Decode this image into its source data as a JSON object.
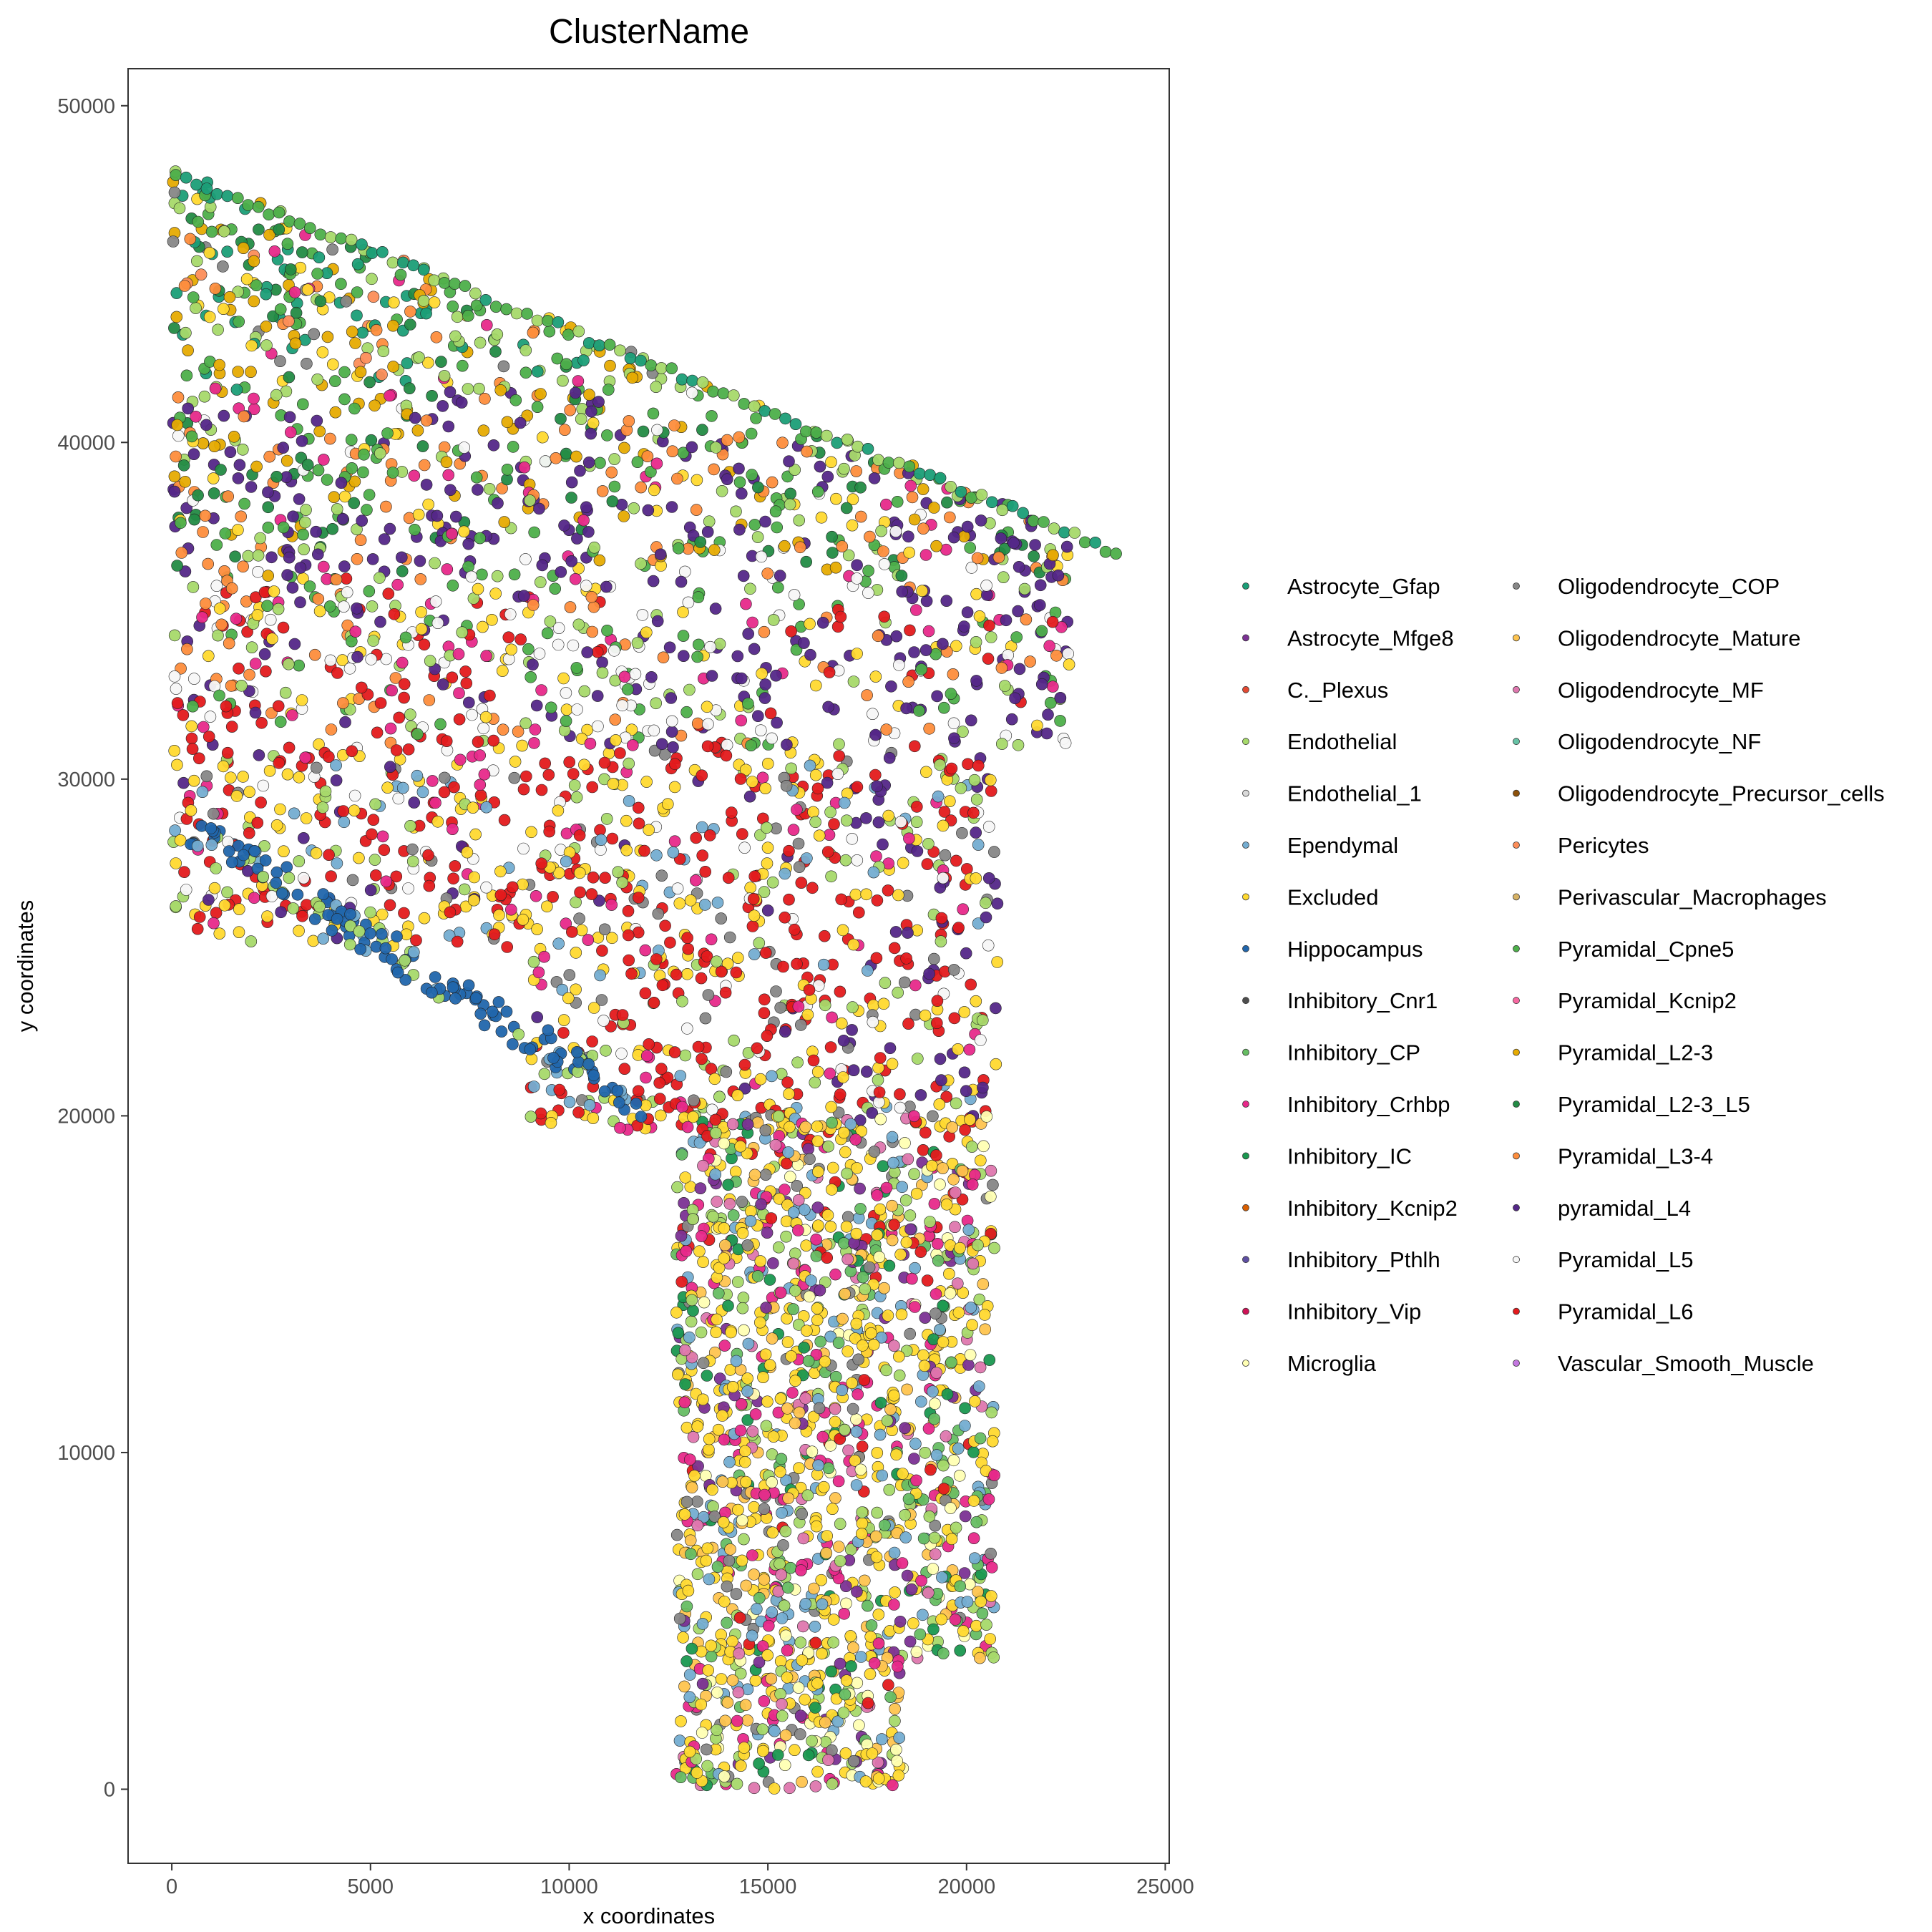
{
  "chart_data": {
    "type": "scatter",
    "title": "ClusterName",
    "xlabel": "x coordinates",
    "ylabel": "y coordinates",
    "xlim": [
      -1100,
      25100
    ],
    "ylim": [
      -2200,
      51100
    ],
    "xticks": [
      0,
      5000,
      10000,
      15000,
      20000,
      25000
    ],
    "yticks": [
      0,
      10000,
      20000,
      30000,
      40000,
      50000
    ],
    "grid": false,
    "legend_position": "right",
    "series": [
      {
        "name": "Astrocyte_Gfap",
        "color": "#1b9e77"
      },
      {
        "name": "Astrocyte_Mfge8",
        "color": "#7b3294"
      },
      {
        "name": "C._Plexus",
        "color": "#e34a33"
      },
      {
        "name": "Endothelial",
        "color": "#a6d96a"
      },
      {
        "name": "Endothelial_1",
        "color": "#d9d9d9"
      },
      {
        "name": "Ependymal",
        "color": "#74add1"
      },
      {
        "name": "Excluded",
        "color": "#ffd92f"
      },
      {
        "name": "Hippocampus",
        "color": "#2166ac"
      },
      {
        "name": "Inhibitory_Cnr1",
        "color": "#4d4d4d"
      },
      {
        "name": "Inhibitory_CP",
        "color": "#66bd63"
      },
      {
        "name": "Inhibitory_Crhbp",
        "color": "#e7298a"
      },
      {
        "name": "Inhibitory_IC",
        "color": "#1a9850"
      },
      {
        "name": "Inhibitory_Kcnip2",
        "color": "#d95f02"
      },
      {
        "name": "Inhibitory_Pthlh",
        "color": "#5e4fa2"
      },
      {
        "name": "Inhibitory_Vip",
        "color": "#ce1256"
      },
      {
        "name": "Microglia",
        "color": "#ffffb3"
      },
      {
        "name": "Oligodendrocyte_COP",
        "color": "#878787"
      },
      {
        "name": "Oligodendrocyte_Mature",
        "color": "#fec44f"
      },
      {
        "name": "Oligodendrocyte_MF",
        "color": "#de77ae"
      },
      {
        "name": "Oligodendrocyte_NF",
        "color": "#66c2a5"
      },
      {
        "name": "Oligodendrocyte_Precursor_cells",
        "color": "#8c510a"
      },
      {
        "name": "Pericytes",
        "color": "#fc8d59"
      },
      {
        "name": "Perivascular_Macrophages",
        "color": "#d8b365"
      },
      {
        "name": "Pyramidal_Cpne5",
        "color": "#4daf4a"
      },
      {
        "name": "Pyramidal_Kcnip2",
        "color": "#f768a1"
      },
      {
        "name": "Pyramidal_L2-3",
        "color": "#e6ab02"
      },
      {
        "name": "Pyramidal_L2-3_L5",
        "color": "#238b45"
      },
      {
        "name": "Pyramidal_L3-4",
        "color": "#fd8d3c"
      },
      {
        "name": "pyramidal_L4",
        "color": "#542788"
      },
      {
        "name": "Pyramidal_L5",
        "color": "#f7f7f7"
      },
      {
        "name": "Pyramidal_L6",
        "color": "#e31a1c"
      },
      {
        "name": "Vascular_Smooth_Muscle",
        "color": "#c377e0"
      }
    ]
  }
}
